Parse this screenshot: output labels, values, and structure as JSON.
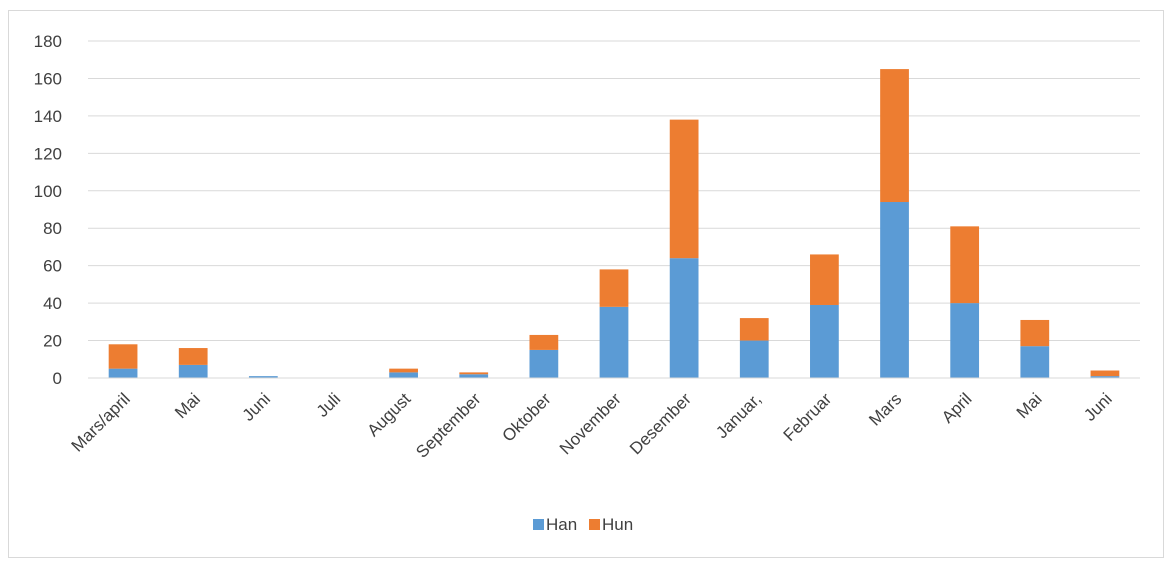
{
  "chart_data": {
    "type": "bar",
    "stacked": true,
    "categories": [
      "Mars/april",
      "Mai",
      "Juni",
      "Juli",
      "August",
      "September",
      "Oktober",
      "November",
      "Desember",
      "Januar,",
      "Februar",
      "Mars",
      "April",
      "Mai",
      "Juni"
    ],
    "series": [
      {
        "name": "Han",
        "color": "#5b9bd5",
        "values": [
          5,
          7,
          1,
          0,
          3,
          2,
          15,
          38,
          64,
          20,
          39,
          94,
          40,
          17,
          1
        ]
      },
      {
        "name": "Hun",
        "color": "#ed7d31",
        "values": [
          13,
          9,
          0,
          0,
          2,
          1,
          8,
          20,
          74,
          12,
          27,
          71,
          41,
          14,
          3
        ]
      }
    ],
    "ylim": [
      0,
      180
    ],
    "yticks": [
      0,
      20,
      40,
      60,
      80,
      100,
      120,
      140,
      160,
      180
    ],
    "grid": true,
    "legend": "bottom",
    "title": "",
    "xlabel": "",
    "ylabel": ""
  }
}
